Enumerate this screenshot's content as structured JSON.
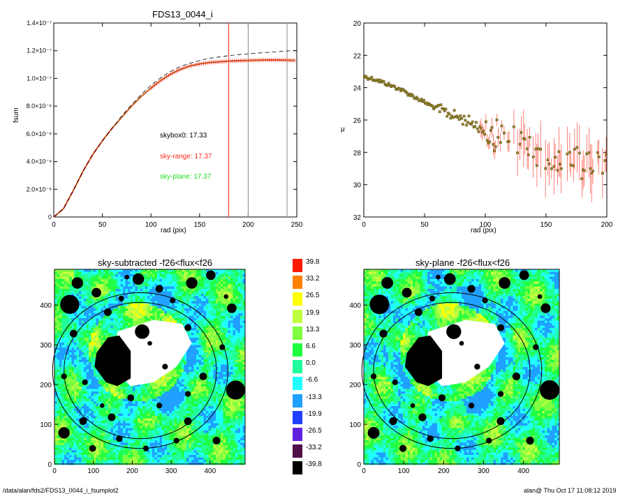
{
  "colors": {
    "black": "#000000",
    "red": "#ff2a1a",
    "green": "#22dd22",
    "olive": "#8a8a2a",
    "gray": "#888888"
  },
  "chart_data": [
    {
      "type": "line",
      "title": "FDS13_0044_i",
      "xlabel": "rad (pix)",
      "ylabel": "fsum",
      "xlim": [
        0,
        250
      ],
      "ylim": [
        0,
        1.4e-07
      ],
      "x_ticks": [
        "0",
        "50",
        "100",
        "150",
        "200",
        "250"
      ],
      "y_ticks": [
        "0",
        "2.0×10⁻⁸",
        "4.0×10⁻⁸",
        "6.0×10⁻⁸",
        "8.0×10⁻⁸",
        "1.0×10⁻⁷",
        "1.2×10⁻⁷",
        "1.4×10⁻⁷"
      ],
      "vertical_lines": [
        {
          "x": 180,
          "color": "red"
        },
        {
          "x": 200,
          "color": "gray"
        },
        {
          "x": 240,
          "color": "gray"
        }
      ],
      "annotations": [
        "skybox0: 17.33",
        "sky-range: 17.37",
        "sky-plane: 17.37"
      ],
      "series": [
        {
          "style": "solid-red-with-errorbars",
          "x": [
            0,
            10,
            20,
            30,
            40,
            50,
            60,
            70,
            80,
            90,
            100,
            110,
            120,
            130,
            140,
            150,
            160,
            170,
            180,
            190,
            200,
            210,
            220,
            230,
            240,
            248
          ],
          "y": [
            0,
            6e-09,
            1.9e-08,
            3.3e-08,
            4.5e-08,
            5.5e-08,
            6.4e-08,
            7.2e-08,
            8e-08,
            8.7e-08,
            9.3e-08,
            9.85e-08,
            1.03e-07,
            1.065e-07,
            1.09e-07,
            1.105e-07,
            1.115e-07,
            1.12e-07,
            1.125e-07,
            1.128e-07,
            1.13e-07,
            1.132e-07,
            1.133e-07,
            1.133e-07,
            1.132e-07,
            1.13e-07
          ]
        },
        {
          "style": "dashed-black",
          "x": [
            0,
            10,
            20,
            30,
            40,
            50,
            60,
            70,
            80,
            90,
            100,
            110,
            120,
            130,
            140,
            150,
            160,
            170,
            180,
            190,
            200,
            210,
            220,
            230,
            240,
            248
          ],
          "y": [
            0,
            6e-09,
            1.9e-08,
            3.3e-08,
            4.5e-08,
            5.5e-08,
            6.4e-08,
            7.3e-08,
            8.1e-08,
            8.85e-08,
            9.5e-08,
            1.005e-07,
            1.05e-07,
            1.085e-07,
            1.11e-07,
            1.13e-07,
            1.145e-07,
            1.155e-07,
            1.165e-07,
            1.172e-07,
            1.178e-07,
            1.183e-07,
            1.188e-07,
            1.193e-07,
            1.198e-07,
            1.202e-07
          ]
        }
      ]
    },
    {
      "type": "scatter",
      "xlabel": "rad (pix)",
      "ylabel": "μ",
      "xlim": [
        0,
        200
      ],
      "ylim": [
        32,
        20
      ],
      "x_ticks": [
        "0",
        "50",
        "100",
        "150",
        "200"
      ],
      "y_ticks": [
        "20",
        "22",
        "24",
        "26",
        "28",
        "30",
        "32"
      ],
      "trend": {
        "x": [
          0,
          10,
          20,
          30,
          40,
          50,
          60,
          70,
          80,
          90,
          100,
          110,
          120,
          130,
          140,
          150,
          160,
          170,
          180,
          190,
          200
        ],
        "y": [
          23.3,
          23.5,
          23.8,
          24.1,
          24.5,
          24.9,
          25.3,
          25.6,
          25.9,
          26.2,
          26.6,
          27.0,
          27.3,
          27.6,
          27.9,
          28.1,
          28.3,
          28.5,
          28.7,
          28.9,
          29.1
        ]
      }
    },
    {
      "type": "heatmap",
      "title": "sky-subtracted -f26<flux<f26",
      "xlim": [
        0,
        490
      ],
      "ylim": [
        0,
        490
      ],
      "x_ticks": [
        "0",
        "100",
        "200",
        "300",
        "400"
      ],
      "y_ticks": [
        "0",
        "100",
        "200",
        "300",
        "400"
      ]
    },
    {
      "type": "heatmap",
      "title": "sky-plane -f26<flux<f26",
      "xlim": [
        0,
        490
      ],
      "ylim": [
        0,
        490
      ],
      "x_ticks": [
        "0",
        "100",
        "200",
        "300",
        "400"
      ],
      "y_ticks": [
        "0",
        "100",
        "200",
        "300",
        "400"
      ]
    }
  ],
  "colorbar": {
    "labels": [
      "39.8",
      "33.2",
      "26.5",
      "19.9",
      "13.3",
      "6.6",
      "0.0",
      "-6.6",
      "-13.3",
      "-19.9",
      "-26.5",
      "-33.2",
      "-39.8"
    ],
    "colors": [
      "#ff1a00",
      "#ff8000",
      "#ffff00",
      "#c0ff40",
      "#80ff40",
      "#20ff40",
      "#20ff9c",
      "#20ffff",
      "#20a0ff",
      "#2040ff",
      "#6020e0",
      "#50104a",
      "#000000"
    ]
  },
  "footer": {
    "left": "/data/alan/fds2/FDS13_0044_i_fsumplot2",
    "right": "alan@  Thu Oct 17 11:08:12 2019"
  }
}
